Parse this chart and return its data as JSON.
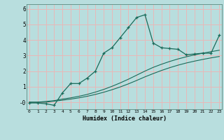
{
  "title": "",
  "xlabel": "Humidex (Indice chaleur)",
  "background_color": "#b8dede",
  "grid_color": "#e8b8b8",
  "line_color": "#1a6b5a",
  "x_ticks": [
    0,
    1,
    2,
    3,
    4,
    5,
    6,
    7,
    8,
    9,
    10,
    11,
    12,
    13,
    14,
    15,
    16,
    17,
    18,
    19,
    20,
    21,
    22,
    23
  ],
  "y_ticks": [
    0,
    1,
    2,
    3,
    4,
    5,
    6
  ],
  "y_tick_labels": [
    "-0",
    "1",
    "2",
    "3",
    "4",
    "5",
    "6"
  ],
  "xlim": [
    -0.3,
    23.3
  ],
  "ylim": [
    -0.45,
    6.3
  ],
  "line1_x": [
    0,
    1,
    2,
    3,
    4,
    5,
    6,
    7,
    8,
    9,
    10,
    11,
    12,
    13,
    14,
    15,
    16,
    17,
    18,
    19,
    20,
    21,
    22,
    23
  ],
  "line1_y": [
    -0.05,
    -0.05,
    -0.1,
    -0.2,
    0.6,
    1.2,
    1.2,
    1.55,
    2.0,
    3.15,
    3.5,
    4.15,
    4.8,
    5.45,
    5.62,
    3.8,
    3.5,
    3.45,
    3.4,
    3.05,
    3.1,
    3.15,
    3.15,
    4.3
  ],
  "line2_x": [
    0,
    1,
    2,
    3,
    4,
    5,
    6,
    7,
    8,
    9,
    10,
    11,
    12,
    13,
    14,
    15,
    16,
    17,
    18,
    19,
    20,
    21,
    22,
    23
  ],
  "line2_y": [
    0.0,
    0.0,
    0.05,
    0.1,
    0.2,
    0.28,
    0.38,
    0.5,
    0.65,
    0.82,
    1.02,
    1.24,
    1.48,
    1.74,
    2.0,
    2.24,
    2.44,
    2.62,
    2.78,
    2.92,
    3.04,
    3.15,
    3.25,
    3.34
  ],
  "line3_x": [
    0,
    1,
    2,
    3,
    4,
    5,
    6,
    7,
    8,
    9,
    10,
    11,
    12,
    13,
    14,
    15,
    16,
    17,
    18,
    19,
    20,
    21,
    22,
    23
  ],
  "line3_y": [
    0.0,
    0.0,
    0.0,
    0.07,
    0.13,
    0.2,
    0.28,
    0.38,
    0.5,
    0.64,
    0.8,
    0.98,
    1.18,
    1.4,
    1.63,
    1.84,
    2.04,
    2.22,
    2.38,
    2.52,
    2.64,
    2.75,
    2.85,
    2.94
  ]
}
